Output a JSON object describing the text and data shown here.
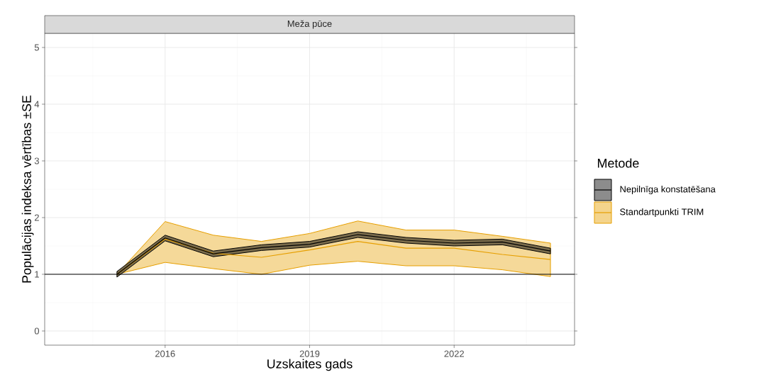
{
  "chart_data": {
    "type": "line",
    "title": "Meža pūce",
    "xlabel": "Uzskaites gads",
    "ylabel": "Populācijas indeksa vērtības ±SE",
    "legend_title": "Metode",
    "x": [
      2015,
      2016,
      2017,
      2018,
      2019,
      2020,
      2021,
      2022,
      2023,
      2024
    ],
    "xlim": [
      2013.5,
      2024.5
    ],
    "ylim": [
      -0.25,
      5.25
    ],
    "xticks": [
      2016,
      2019,
      2022
    ],
    "yticks": [
      0,
      1,
      2,
      3,
      4,
      5
    ],
    "series": [
      {
        "name": "Standartpunkti TRIM",
        "color": "#e69f00",
        "values": [
          1.0,
          1.62,
          1.37,
          1.3,
          1.43,
          1.58,
          1.46,
          1.46,
          1.35,
          1.26
        ],
        "lower": [
          1.0,
          1.21,
          1.1,
          1.0,
          1.16,
          1.23,
          1.15,
          1.15,
          1.08,
          0.96
        ],
        "upper": [
          1.0,
          1.93,
          1.69,
          1.58,
          1.72,
          1.94,
          1.78,
          1.78,
          1.67,
          1.55
        ]
      },
      {
        "name": "Nepilnīga konstatēšana",
        "color": "#000000",
        "values": [
          1.0,
          1.64,
          1.36,
          1.47,
          1.53,
          1.7,
          1.6,
          1.55,
          1.57,
          1.41
        ],
        "lower": [
          0.95,
          1.59,
          1.31,
          1.42,
          1.48,
          1.65,
          1.55,
          1.5,
          1.52,
          1.36
        ],
        "upper": [
          1.05,
          1.69,
          1.41,
          1.52,
          1.58,
          1.75,
          1.65,
          1.6,
          1.62,
          1.46
        ]
      }
    ],
    "ref_lines": [
      {
        "axis": "y",
        "value": 1,
        "color": "#000000"
      }
    ],
    "grid": true,
    "legend": "right"
  }
}
